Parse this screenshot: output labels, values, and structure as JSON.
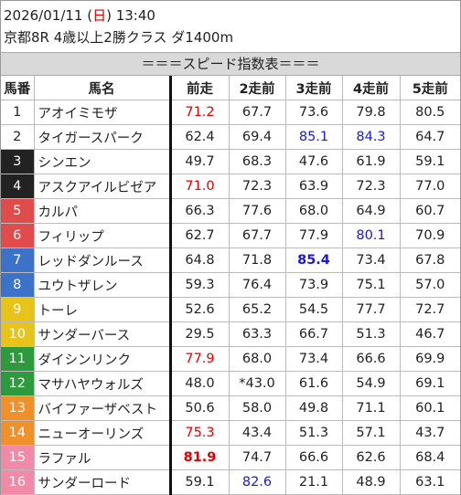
{
  "header": {
    "date_prefix": "2026/01/11 (",
    "day": "日",
    "date_suffix": ") 13:40",
    "race": "京都8R 4歳以上2勝クラス ダ1400m"
  },
  "banner": "＝＝＝スピード指数表＝＝＝",
  "columns": [
    "馬番",
    "馬名",
    "前走",
    "2走前",
    "3走前",
    "4走前",
    "5走前"
  ],
  "colors": {
    "waku1": "#ffffff",
    "waku2": "#ffffff",
    "waku3": "#222222",
    "waku4": "#222222",
    "waku5": "#e04b4b",
    "waku6": "#e04b4b",
    "waku7": "#3c72c8",
    "waku8": "#3c72c8",
    "waku9": "#e8c31a",
    "waku10": "#e8c31a",
    "waku11": "#2e9a3e",
    "waku12": "#2e9a3e",
    "waku13": "#f0902a",
    "waku14": "#f0902a",
    "waku15": "#f08aa8",
    "waku16": "#f08aa8",
    "highlight_red": "#e00000",
    "highlight_blue": "#1a1ad0"
  },
  "rows": [
    {
      "no": "1",
      "name": "アオイミモザ",
      "v": [
        "71.2",
        "67.7",
        "73.6",
        "79.8",
        "80.5"
      ],
      "s": [
        "red",
        "",
        "",
        "",
        ""
      ]
    },
    {
      "no": "2",
      "name": "タイガースパーク",
      "v": [
        "62.4",
        "69.4",
        "85.1",
        "84.3",
        "64.7"
      ],
      "s": [
        "",
        "",
        "blue",
        "blue",
        ""
      ]
    },
    {
      "no": "3",
      "name": "シンエン",
      "v": [
        "49.7",
        "68.3",
        "47.6",
        "61.9",
        "59.1"
      ],
      "s": [
        "",
        "",
        "",
        "",
        ""
      ]
    },
    {
      "no": "4",
      "name": "アスクアイルビゼア",
      "v": [
        "71.0",
        "72.3",
        "63.9",
        "72.3",
        "77.0"
      ],
      "s": [
        "red",
        "",
        "",
        "",
        ""
      ]
    },
    {
      "no": "5",
      "name": "カルパ",
      "v": [
        "66.3",
        "77.6",
        "68.0",
        "64.9",
        "60.7"
      ],
      "s": [
        "",
        "",
        "",
        "",
        ""
      ]
    },
    {
      "no": "6",
      "name": "フィリップ",
      "v": [
        "62.7",
        "67.7",
        "77.9",
        "80.1",
        "70.9"
      ],
      "s": [
        "",
        "",
        "",
        "blue",
        ""
      ]
    },
    {
      "no": "7",
      "name": "レッドダンルース",
      "v": [
        "64.8",
        "71.8",
        "85.4",
        "73.4",
        "67.8"
      ],
      "s": [
        "",
        "",
        "blueb",
        "",
        ""
      ]
    },
    {
      "no": "8",
      "name": "ユウトザレン",
      "v": [
        "59.3",
        "76.4",
        "73.9",
        "75.1",
        "57.0"
      ],
      "s": [
        "",
        "",
        "",
        "",
        ""
      ]
    },
    {
      "no": "9",
      "name": "トーレ",
      "v": [
        "52.6",
        "65.2",
        "54.5",
        "77.7",
        "72.7"
      ],
      "s": [
        "",
        "",
        "",
        "",
        ""
      ]
    },
    {
      "no": "10",
      "name": "サンダーバース",
      "v": [
        "29.5",
        "63.3",
        "66.7",
        "51.3",
        "46.7"
      ],
      "s": [
        "",
        "",
        "",
        "",
        ""
      ]
    },
    {
      "no": "11",
      "name": "ダイシンリンク",
      "v": [
        "77.9",
        "68.0",
        "73.4",
        "66.6",
        "69.9"
      ],
      "s": [
        "red",
        "",
        "",
        "",
        ""
      ]
    },
    {
      "no": "12",
      "name": "マサハヤウォルズ",
      "v": [
        "48.0",
        "*43.0",
        "61.6",
        "54.9",
        "69.1"
      ],
      "s": [
        "",
        "",
        "",
        "",
        ""
      ]
    },
    {
      "no": "13",
      "name": "バイファーザベスト",
      "v": [
        "50.6",
        "58.0",
        "49.8",
        "71.1",
        "60.1"
      ],
      "s": [
        "",
        "",
        "",
        "",
        ""
      ]
    },
    {
      "no": "14",
      "name": "ニューオーリンズ",
      "v": [
        "75.3",
        "43.4",
        "51.3",
        "57.1",
        "43.7"
      ],
      "s": [
        "red",
        "",
        "",
        "",
        ""
      ]
    },
    {
      "no": "15",
      "name": "ラファル",
      "v": [
        "81.9",
        "74.7",
        "66.6",
        "62.6",
        "68.4"
      ],
      "s": [
        "redb",
        "",
        "",
        "",
        ""
      ]
    },
    {
      "no": "16",
      "name": "サンダーロード",
      "v": [
        "59.1",
        "82.6",
        "21.1",
        "48.9",
        "63.1"
      ],
      "s": [
        "",
        "blue",
        "",
        "",
        ""
      ]
    }
  ]
}
